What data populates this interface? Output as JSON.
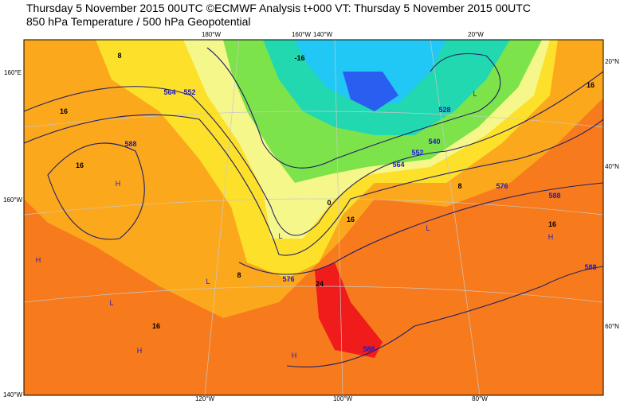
{
  "header": {
    "line1": "Thursday 5 November 2015 00UTC ©ECMWF Analysis t+000 VT: Thursday 5 November 2015 00UTC",
    "line2": "850 hPa Temperature / 500 hPa Geopotential"
  },
  "map": {
    "lon_labels": [
      "180°W",
      "160°W",
      "140°W",
      "20°W",
      "120°W",
      "100°W",
      "80°W"
    ],
    "edge_labels": [
      "160°E",
      "160°W",
      "140°W",
      "20°N",
      "40°N",
      "60°N"
    ],
    "temperature_labels": [
      "16",
      "16",
      "8",
      "-16",
      "0",
      "16",
      "24",
      "8",
      "16",
      "16",
      "16",
      "8"
    ],
    "geopotential_labels": [
      "564",
      "552",
      "588",
      "576",
      "576",
      "588",
      "588",
      "588",
      "528",
      "540",
      "564",
      "552"
    ],
    "pressure_markers": [
      "H",
      "H",
      "L",
      "H",
      "H",
      "L",
      "H",
      "L",
      "L",
      "L"
    ]
  }
}
